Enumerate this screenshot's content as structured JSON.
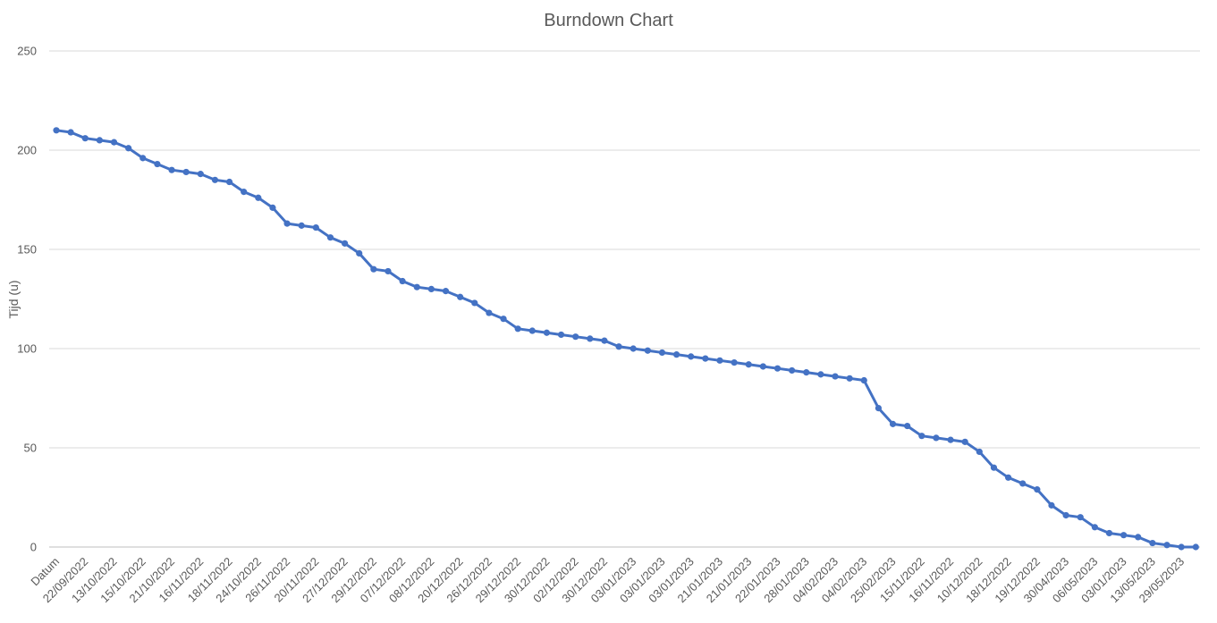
{
  "chart_data": {
    "type": "line",
    "title": "Burndown Chart",
    "xlabel": "",
    "ylabel": "Tijd (u)",
    "ylim": [
      0,
      250
    ],
    "yticks": [
      0,
      50,
      100,
      150,
      200,
      250
    ],
    "grid": true,
    "legend": "none",
    "line_color": "#4472C4",
    "tick_labels": [
      "Datum",
      "22/09/2022",
      "13/10/2022",
      "15/10/2022",
      "21/10/2022",
      "16/11/2022",
      "18/11/2022",
      "24/10/2022",
      "26/11/2022",
      "20/11/2022",
      "27/12/2022",
      "29/12/2022",
      "07/12/2022",
      "08/12/2022",
      "20/12/2022",
      "26/12/2022",
      "29/12/2022",
      "30/12/2022",
      "02/12/2022",
      "30/12/2022",
      "03/01/2023",
      "03/01/2023",
      "03/01/2023",
      "21/01/2023",
      "21/01/2023",
      "22/01/2023",
      "28/01/2023",
      "04/02/2023",
      "04/02/2023",
      "25/02/2023",
      "15/11/2022",
      "16/11/2022",
      "10/12/2022",
      "18/12/2022",
      "19/12/2022",
      "30/04/2023",
      "06/05/2023",
      "03/01/2023",
      "13/05/2023",
      "29/05/2023"
    ],
    "values": [
      210,
      209,
      206,
      205,
      204,
      201,
      196,
      193,
      190,
      189,
      188,
      185,
      184,
      179,
      176,
      171,
      163,
      162,
      161,
      156,
      153,
      148,
      140,
      139,
      134,
      131,
      130,
      129,
      126,
      123,
      118,
      115,
      110,
      109,
      108,
      107,
      106,
      105,
      104,
      101,
      100,
      99,
      98,
      97,
      96,
      95,
      94,
      93,
      92,
      91,
      90,
      89,
      88,
      87,
      86,
      85,
      84,
      70,
      62,
      61,
      56,
      55,
      54,
      53,
      48,
      40,
      35,
      32,
      29,
      21,
      16,
      15,
      10,
      7,
      6,
      5,
      2,
      1,
      0,
      0
    ]
  }
}
